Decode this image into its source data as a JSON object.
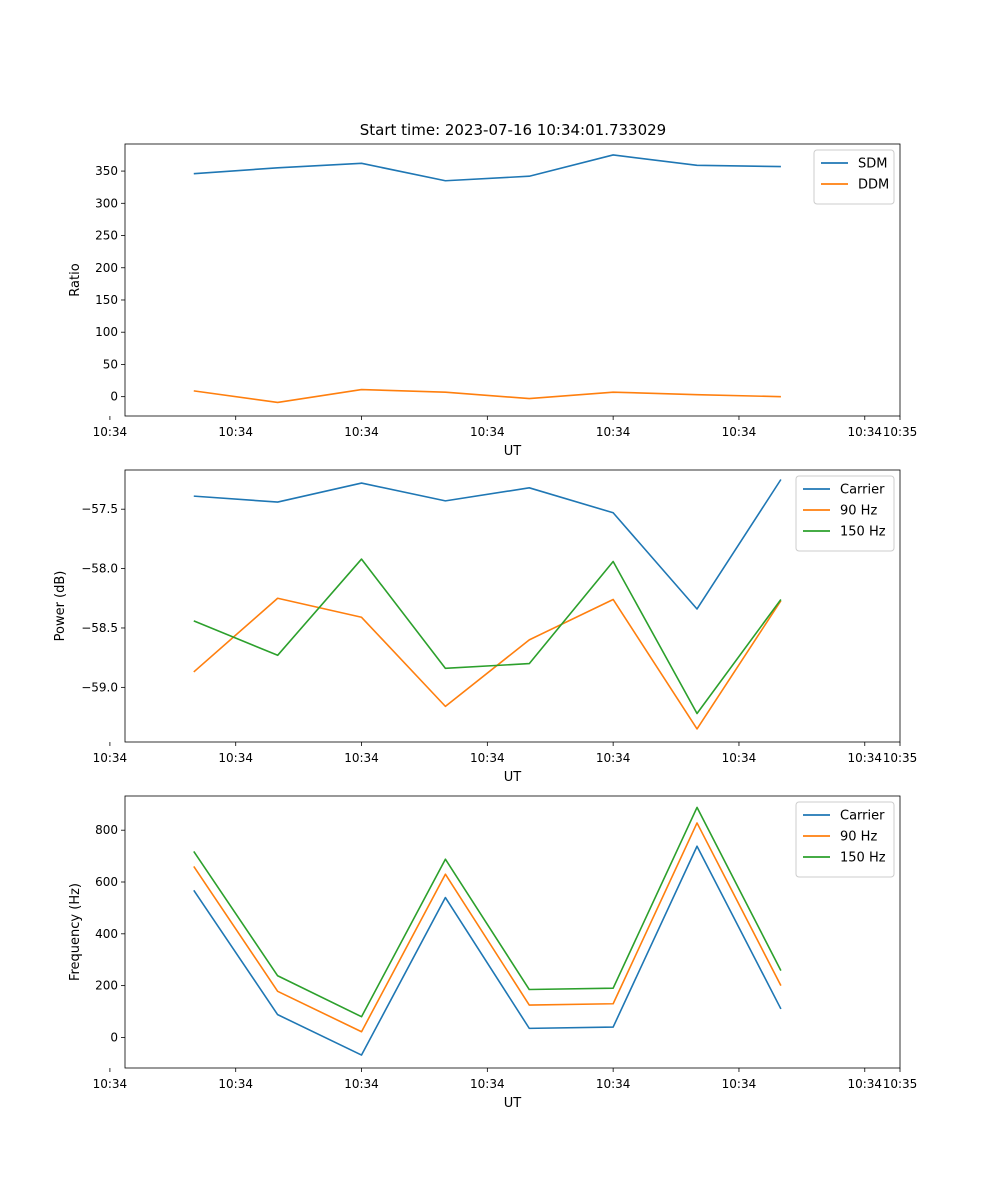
{
  "figure_title": "Start time: 2023-07-16 10:34:01.733029",
  "colors": {
    "blue": "#1f77b4",
    "orange": "#ff7f0e",
    "green": "#2ca02c"
  },
  "chart_data": [
    {
      "type": "line",
      "title": "Start time: 2023-07-16 10:34:01.733029",
      "xlabel": "UT",
      "ylabel": "Ratio",
      "x": [
        1,
        2,
        3,
        4,
        5,
        6,
        7,
        8
      ],
      "xlim": [
        0.18,
        9.42
      ],
      "xticks": [
        0,
        1.5,
        3,
        4.5,
        6,
        7.5,
        9
      ],
      "xtick_labels": [
        "10:34",
        "10:34",
        "10:34",
        "10:34",
        "10:34",
        "10:34",
        "10:34",
        "10:35"
      ],
      "ylim": [
        -30,
        392
      ],
      "yticks": [
        0,
        50,
        100,
        150,
        200,
        250,
        300,
        350
      ],
      "ytick_labels": [
        "0",
        "50",
        "100",
        "150",
        "200",
        "250",
        "300",
        "350"
      ],
      "legend_position": "top-right",
      "series": [
        {
          "name": "SDM",
          "color": "#1f77b4",
          "values": [
            346,
            355,
            362,
            335,
            342,
            375,
            359,
            357
          ]
        },
        {
          "name": "DDM",
          "color": "#ff7f0e",
          "values": [
            9,
            -9,
            11,
            7,
            -3,
            7,
            3,
            0
          ]
        }
      ]
    },
    {
      "type": "line",
      "title": "",
      "xlabel": "UT",
      "ylabel": "Power (dB)",
      "x": [
        1,
        2,
        3,
        4,
        5,
        6,
        7,
        8
      ],
      "xlim": [
        0.18,
        9.42
      ],
      "xticks": [
        0,
        1.5,
        3,
        4.5,
        6,
        7.5,
        9
      ],
      "xtick_labels": [
        "10:34",
        "10:34",
        "10:34",
        "10:34",
        "10:34",
        "10:34",
        "10:34",
        "10:35"
      ],
      "ylim": [
        -59.46,
        -57.17
      ],
      "yticks": [
        -59.0,
        -58.5,
        -58.0,
        -57.5
      ],
      "ytick_labels": [
        "−59.0",
        "−58.5",
        "−58.0",
        "−57.5"
      ],
      "legend_position": "top-right",
      "series": [
        {
          "name": "Carrier",
          "color": "#1f77b4",
          "values": [
            -57.39,
            -57.44,
            -57.28,
            -57.43,
            -57.32,
            -57.53,
            -58.34,
            -57.25
          ]
        },
        {
          "name": "90 Hz",
          "color": "#ff7f0e",
          "values": [
            -58.87,
            -58.25,
            -58.41,
            -59.16,
            -58.6,
            -58.26,
            -59.35,
            -58.27
          ]
        },
        {
          "name": "150 Hz",
          "color": "#2ca02c",
          "values": [
            -58.44,
            -58.73,
            -57.92,
            -58.84,
            -58.8,
            -57.94,
            -59.22,
            -58.26
          ]
        }
      ]
    },
    {
      "type": "line",
      "title": "",
      "xlabel": "UT",
      "ylabel": "Frequency (Hz)",
      "x": [
        1,
        2,
        3,
        4,
        5,
        6,
        7,
        8
      ],
      "xlim": [
        0.18,
        9.42
      ],
      "xticks": [
        0,
        1.5,
        3,
        4.5,
        6,
        7.5,
        9
      ],
      "xtick_labels": [
        "10:34",
        "10:34",
        "10:34",
        "10:34",
        "10:34",
        "10:34",
        "10:34",
        "10:35"
      ],
      "ylim": [
        -118,
        932
      ],
      "yticks": [
        0,
        200,
        400,
        600,
        800
      ],
      "ytick_labels": [
        "0",
        "200",
        "400",
        "600",
        "800"
      ],
      "legend_position": "top-right",
      "series": [
        {
          "name": "Carrier",
          "color": "#1f77b4",
          "values": [
            568,
            88,
            -68,
            540,
            35,
            40,
            738,
            110
          ]
        },
        {
          "name": "90 Hz",
          "color": "#ff7f0e",
          "values": [
            660,
            178,
            22,
            630,
            125,
            130,
            828,
            200
          ]
        },
        {
          "name": "150 Hz",
          "color": "#2ca02c",
          "values": [
            718,
            238,
            80,
            688,
            185,
            190,
            888,
            258
          ]
        }
      ]
    }
  ]
}
